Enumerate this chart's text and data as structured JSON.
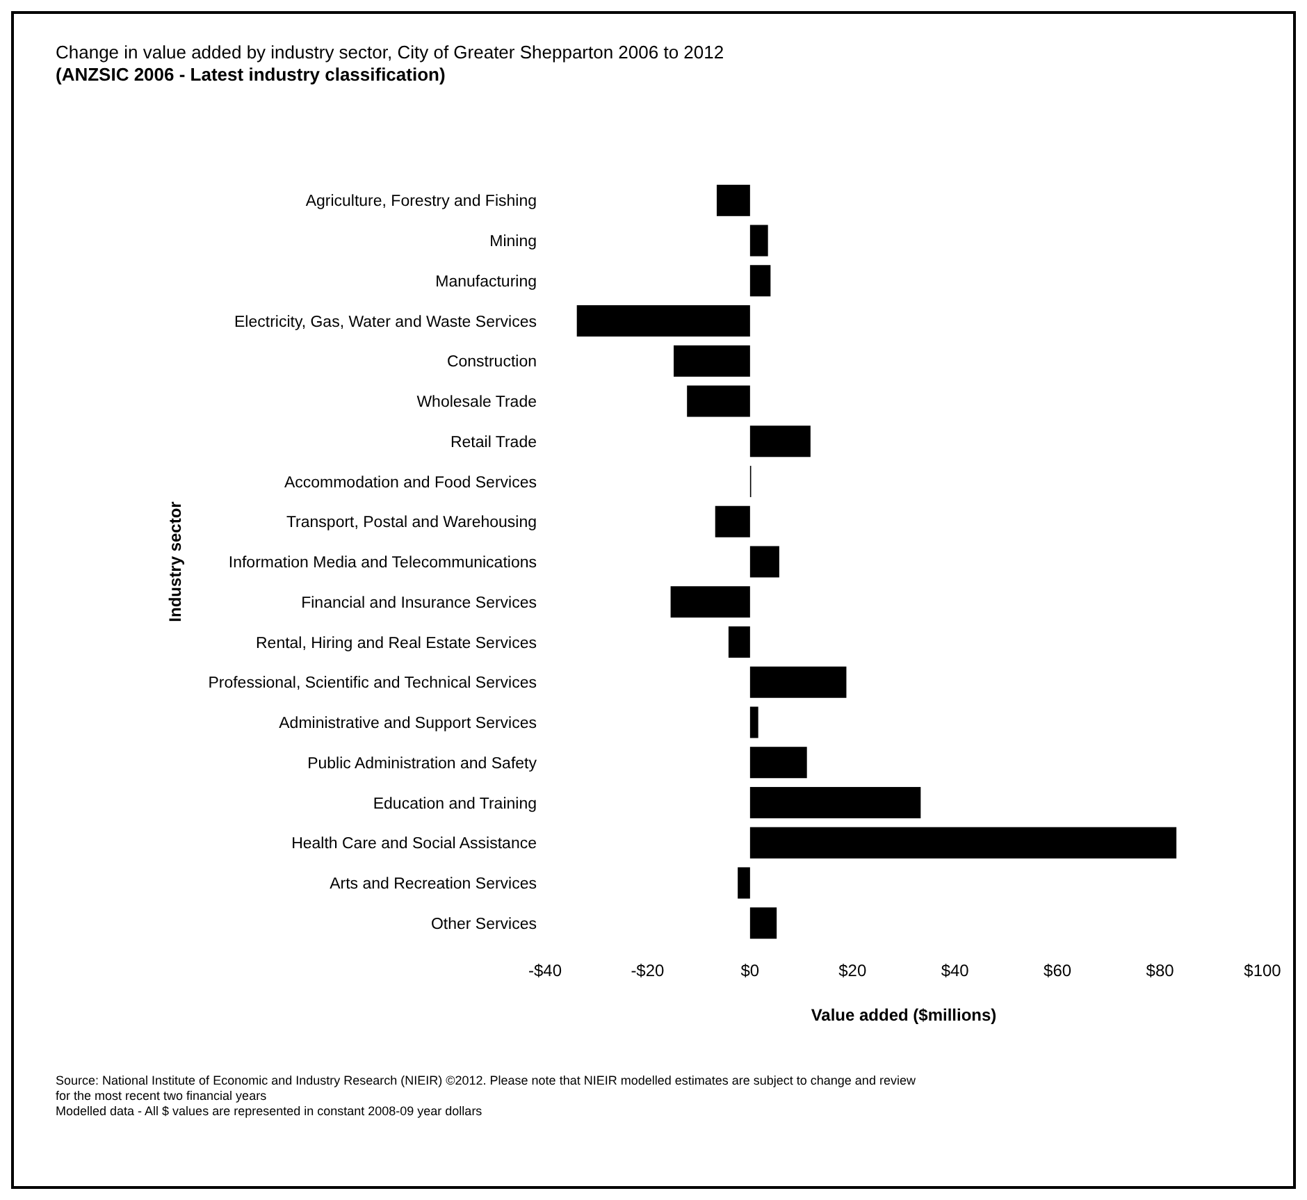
{
  "chart_data": {
    "type": "bar",
    "orientation": "horizontal",
    "title": "Change in value added by industry sector, City of Greater Shepparton 2006 to 2012",
    "subtitle": "(ANZSIC 2006 - Latest industry classification)",
    "xlabel": "Value added ($millions)",
    "ylabel": "Industry sector",
    "categories": [
      "Agriculture, Forestry and Fishing",
      "Mining",
      "Manufacturing",
      "Electricity, Gas, Water and Waste Services",
      "Construction",
      "Wholesale Trade",
      "Retail Trade",
      "Accommodation and Food Services",
      "Transport, Postal and Warehousing",
      "Information Media and Telecommunications",
      "Financial and Insurance Services",
      "Rental, Hiring and Real Estate Services",
      "Professional, Scientific and Technical Services",
      "Administrative and Support Services",
      "Public Administration and Safety",
      "Education and Training",
      "Health Care and Social Assistance",
      "Arts and Recreation Services",
      "Other Services"
    ],
    "values": [
      -6.5,
      3.5,
      4.0,
      -33.8,
      -14.9,
      -12.3,
      11.8,
      0,
      -6.8,
      5.7,
      -15.5,
      -4.2,
      18.8,
      1.6,
      11.1,
      33.3,
      83.2,
      -2.4,
      5.2
    ],
    "color": "#000000",
    "xlim": [
      -40,
      100
    ],
    "xticks": [
      {
        "value": -40,
        "label": "-$40"
      },
      {
        "value": -20,
        "label": "-$20"
      },
      {
        "value": 0,
        "label": "$0"
      },
      {
        "value": 20,
        "label": "$20"
      },
      {
        "value": 40,
        "label": "$40"
      },
      {
        "value": 60,
        "label": "$60"
      },
      {
        "value": 80,
        "label": "$80"
      },
      {
        "value": 100,
        "label": "$100"
      }
    ],
    "grid": false,
    "annotations": [
      "Source: National Institute of Economic and Industry Research (NIEIR) ©2012. Please note that NIEIR modelled estimates are subject to change and review for the most recent two financial years",
      "Modelled data - All $ values are represented in constant 2008-09 year dollars"
    ]
  }
}
